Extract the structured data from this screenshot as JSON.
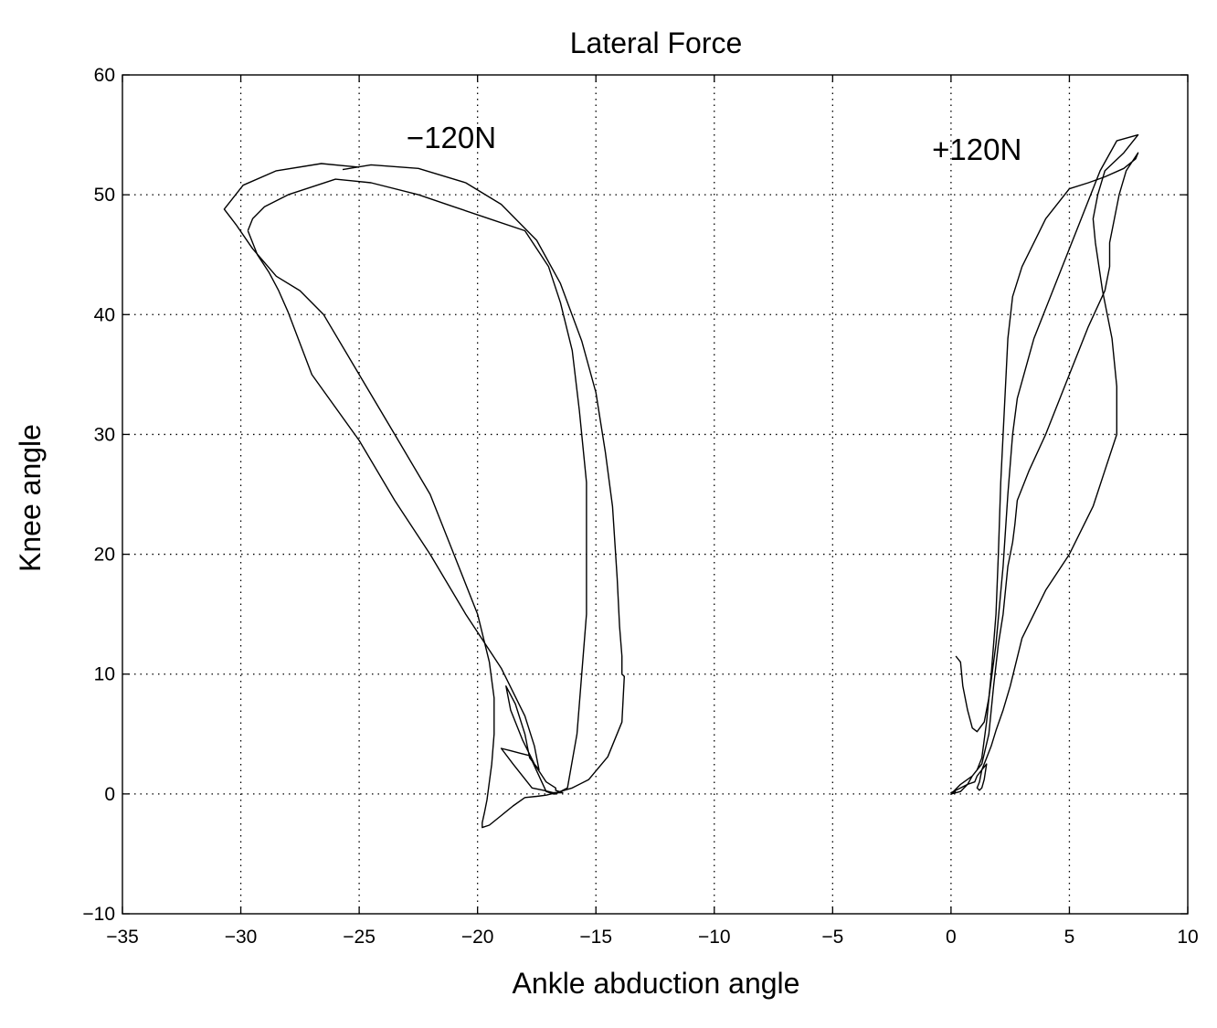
{
  "chart_data": {
    "type": "line",
    "title": "Lateral Force",
    "xlabel": "Ankle abduction angle",
    "ylabel": "Knee angle",
    "xlim": [
      -35,
      10
    ],
    "ylim": [
      -10,
      60
    ],
    "xticks": [
      -35,
      -30,
      -25,
      -20,
      -15,
      -10,
      -5,
      0,
      5,
      10
    ],
    "yticks": [
      -10,
      0,
      10,
      20,
      30,
      40,
      50,
      60
    ],
    "xtick_labels": [
      "−35",
      "−30",
      "−25",
      "−20",
      "−15",
      "−10",
      "−5",
      "0",
      "5",
      "10"
    ],
    "ytick_labels": [
      "−10",
      "0",
      "10",
      "20",
      "30",
      "40",
      "50",
      "60"
    ],
    "grid": true,
    "annotations": [
      {
        "text": "−120N",
        "x": -23.0,
        "y": 53.9
      },
      {
        "text": "+120N",
        "x": -0.8,
        "y": 52.9
      }
    ],
    "series": [
      {
        "values_x": [
          -25.7,
          -24.5,
          -22.5,
          -20.5,
          -19,
          -17.5,
          -16.5,
          -15.6,
          -15,
          -14.6,
          -14.3,
          -14.1,
          -14.0,
          -13.9,
          -13.9,
          -13.8,
          -13.9,
          -14.5,
          -15.3,
          -16.0,
          -16.5,
          -16.9,
          -17.1,
          -17.5,
          -18.0,
          -18.5,
          -19.0,
          -19.5,
          -19.8,
          -19.8,
          -19.7,
          -19.6,
          -19.5,
          -19.4,
          -19.3,
          -19.3,
          -19.5,
          -20.0,
          -21.0,
          -22.0,
          -23.5,
          -25.0,
          -26.5,
          -27.5,
          -28.5,
          -29.5,
          -30.2,
          -30.7,
          -29.9,
          -28.5,
          -26.6,
          -25.0
        ],
        "values_y": [
          52.1,
          52.5,
          52.2,
          51.0,
          49.2,
          46.2,
          42.6,
          37.8,
          33.5,
          28.5,
          24.0,
          18.0,
          14.0,
          11.5,
          10.0,
          9.8,
          6.0,
          3.1,
          1.2,
          0.5,
          0.2,
          0.0,
          -0.1,
          -0.2,
          -0.3,
          -1.0,
          -1.8,
          -2.6,
          -2.8,
          -2.4,
          -1.5,
          -0.5,
          1.0,
          2.5,
          5.0,
          8.0,
          11.0,
          15.0,
          20.0,
          25.0,
          30.0,
          35.0,
          40.0,
          42.0,
          43.2,
          45.5,
          47.5,
          48.8,
          50.8,
          52.0,
          52.6,
          52.3
        ]
      },
      {
        "values_x": [
          -29.7,
          -29.3,
          -28.8,
          -28.4,
          -28.0,
          -27.0,
          -25.0,
          -23.5,
          -22.0,
          -20.5,
          -19.0,
          -18.0,
          -17.6,
          -17.4,
          -17.8,
          -18.0,
          -18.4,
          -18.8,
          -18.6,
          -18.1,
          -17.6,
          -17.1,
          -16.7,
          -16.7,
          -16.4,
          -16.8,
          -17.2,
          -17.7,
          -18.1,
          -18.5,
          -19.0,
          -18.6,
          -18.2,
          -17.8,
          -17.1,
          -16.8,
          -16.7,
          -16.2,
          -15.8,
          -15.6,
          -15.4,
          -15.4,
          -15.4,
          -15.7,
          -16.0,
          -16.5,
          -17.0,
          -18.0,
          -19.5,
          -21.0,
          -22.5,
          -24.5,
          -26.0,
          -28.0,
          -29.0,
          -29.5,
          -29.7
        ],
        "values_y": [
          47.0,
          45.0,
          43.5,
          42.0,
          40.2,
          35.0,
          29.5,
          24.5,
          20.0,
          15.0,
          10.5,
          6.5,
          4.0,
          2.0,
          3.0,
          5.0,
          7.5,
          9.0,
          7.0,
          4.5,
          2.5,
          1.0,
          0.5,
          0.3,
          0.1,
          0.1,
          0.3,
          0.5,
          1.5,
          2.5,
          3.8,
          3.6,
          3.4,
          3.2,
          0.2,
          0.0,
          0.0,
          0.5,
          5.0,
          10.0,
          15.0,
          20.0,
          26.0,
          32.0,
          37.0,
          41.0,
          44.0,
          47.0,
          48.0,
          49.0,
          50.0,
          51.0,
          51.3,
          50.0,
          49.0,
          48.0,
          47.0
        ]
      },
      {
        "values_x": [
          0.2,
          0.4,
          0.5,
          0.7,
          0.9,
          1.1,
          1.4,
          1.6,
          1.9,
          2.2,
          2.3,
          2.4,
          2.6,
          2.8,
          3.5,
          4.5,
          5.5,
          6.3,
          7.0,
          7.9,
          7.3,
          6.5,
          6.2,
          6.0,
          6.1,
          6.4,
          6.8,
          7.0,
          7.0,
          6.5,
          6.0,
          5.0,
          4.0,
          3.0,
          2.5,
          2.2,
          1.9,
          1.7,
          1.5,
          1.3,
          1.2,
          1.1,
          1.2,
          1.3,
          1.4,
          1.5,
          1.3,
          1.1,
          1.0,
          0.7,
          0.3,
          0.0,
          0.2
        ],
        "values_y": [
          11.5,
          11.0,
          9.0,
          7.0,
          5.5,
          5.2,
          6.0,
          8.0,
          12.5,
          19.0,
          22.0,
          25.0,
          30.0,
          33.0,
          38.0,
          43.0,
          48.0,
          52.0,
          54.5,
          55.0,
          53.5,
          52.0,
          50.0,
          48.0,
          46.0,
          42.0,
          38.0,
          34.0,
          30.0,
          27.0,
          24.0,
          20.0,
          17.0,
          13.0,
          9.0,
          7.0,
          5.3,
          4.0,
          3.0,
          2.0,
          1.0,
          0.5,
          0.3,
          0.5,
          1.2,
          2.5,
          2.0,
          1.5,
          1.0,
          0.8,
          0.4,
          0.1,
          0.2
        ]
      },
      {
        "values_x": [
          0.0,
          0.4,
          0.9,
          1.3,
          1.6,
          1.8,
          2.0,
          2.2,
          2.4,
          2.5,
          2.6,
          2.7,
          2.8,
          3.3,
          4.0,
          5.0,
          5.8,
          6.5,
          6.7,
          6.7,
          6.9,
          7.1,
          7.4,
          7.9,
          7.8,
          7.3,
          6.5,
          5.8,
          5.0,
          4.0,
          3.5,
          3.0,
          2.6,
          2.4,
          2.3,
          2.2,
          2.1,
          2.0,
          1.9,
          1.7,
          1.5,
          1.3,
          1.1,
          0.9,
          0.7,
          0.4,
          0.0
        ],
        "values_y": [
          0.0,
          0.8,
          1.5,
          2.5,
          5.0,
          9.0,
          12.5,
          15.0,
          19.0,
          20.0,
          21.0,
          22.5,
          24.5,
          27.0,
          30.0,
          35.0,
          39.0,
          42.0,
          44.0,
          46.0,
          48.0,
          50.0,
          52.0,
          53.5,
          53.0,
          52.2,
          51.5,
          51.0,
          50.5,
          48.0,
          46.0,
          44.0,
          41.5,
          38.0,
          34.0,
          30.0,
          26.0,
          20.0,
          15.0,
          10.0,
          6.0,
          3.0,
          2.0,
          1.5,
          0.8,
          0.2,
          0.0
        ]
      }
    ]
  }
}
